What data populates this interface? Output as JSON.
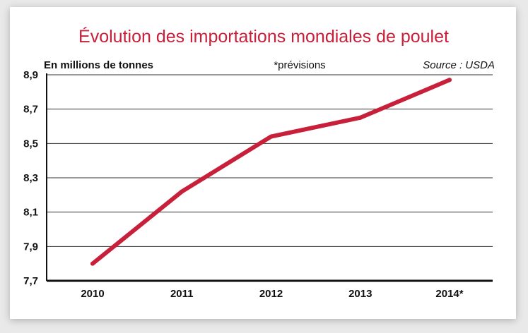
{
  "chart_data": {
    "type": "line",
    "title": "Évolution des importations mondiales de poulet",
    "unit_label": "En millions de tonnes",
    "note": "*prévisions",
    "source": "Source : USDA",
    "categories": [
      "2010",
      "2011",
      "2012",
      "2013",
      "2014*"
    ],
    "series": [
      {
        "values": [
          7.8,
          8.22,
          8.54,
          8.65,
          8.87
        ]
      }
    ],
    "yticks": [
      "7,7",
      "7,9",
      "8,1",
      "8,3",
      "8,5",
      "8,7",
      "8,9"
    ],
    "ylim": [
      7.7,
      8.9
    ],
    "grid": true,
    "legend": "none",
    "colors": {
      "title": "#c8203a",
      "line": "#c8203a",
      "grid": "#333333"
    }
  }
}
